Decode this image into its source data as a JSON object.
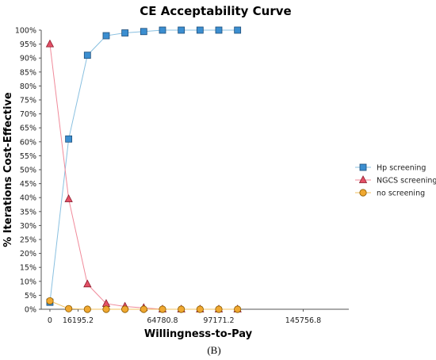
{
  "chart_data": {
    "type": "line",
    "title": "CE Acceptability Curve",
    "xlabel": "Willingness-to-Pay",
    "ylabel": "% Iterations Cost-Effective",
    "caption": "(B)",
    "x": [
      0,
      10798.4,
      21596.8,
      32395.2,
      43193.6,
      53992,
      64790.4,
      75588.8,
      86387.2,
      97185.6,
      107984
    ],
    "x_ticks": [
      {
        "value": 0,
        "label": "0"
      },
      {
        "value": 16195.2,
        "label": "16195.2"
      },
      {
        "value": 64780.8,
        "label": "64780.8"
      },
      {
        "value": 97171.2,
        "label": "97171.2"
      },
      {
        "value": 145756.8,
        "label": "145756.8"
      }
    ],
    "xlim": [
      -5000,
      172000
    ],
    "ylim": [
      0,
      100
    ],
    "y_ticks": [
      0,
      5,
      10,
      15,
      20,
      25,
      30,
      35,
      40,
      45,
      50,
      55,
      60,
      65,
      70,
      75,
      80,
      85,
      90,
      95,
      100
    ],
    "y_tick_suffix": "%",
    "grid": false,
    "legend_position": "right",
    "series": [
      {
        "name": "Hp screening",
        "marker": "square",
        "color": "#89c0e0",
        "fill": "#3b8ed0",
        "values": [
          2.5,
          61,
          91,
          98,
          99,
          99.5,
          100,
          100,
          100,
          100,
          100
        ]
      },
      {
        "name": "NGCS screening",
        "marker": "triangle",
        "color": "#f08a9a",
        "fill": "#e35066",
        "values": [
          95,
          39.5,
          9,
          2,
          1,
          0.5,
          0,
          0,
          0,
          0,
          0
        ]
      },
      {
        "name": "no screening",
        "marker": "circle",
        "color": "#f0c060",
        "fill": "#f0a830",
        "values": [
          3,
          0.2,
          0,
          0,
          0,
          0,
          0,
          0,
          0,
          0,
          0
        ]
      }
    ]
  }
}
